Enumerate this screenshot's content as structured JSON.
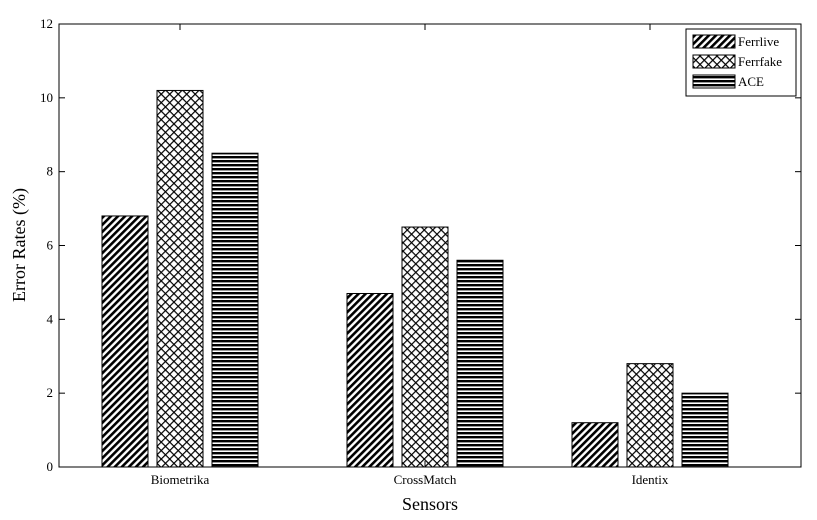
{
  "chart_data": {
    "type": "bar",
    "title": "",
    "xlabel": "Sensors",
    "ylabel": "Error Rates (%)",
    "categories": [
      "Biometrika",
      "CrossMatch",
      "Identix"
    ],
    "series": [
      {
        "name": "Ferrlive",
        "values": [
          6.8,
          4.7,
          1.2
        ],
        "pattern": "diagonal-hatch"
      },
      {
        "name": "Ferrfake",
        "values": [
          10.2,
          6.5,
          2.8
        ],
        "pattern": "crosshatch"
      },
      {
        "name": "ACE",
        "values": [
          8.5,
          5.6,
          2.0
        ],
        "pattern": "horizontal-stripes"
      }
    ],
    "ylim": [
      0,
      12
    ],
    "yticks": [
      "0",
      "2",
      "4",
      "6",
      "8",
      "10",
      "12"
    ],
    "legend_position": "top-right",
    "grid": false,
    "colors": {
      "ink": "#000000",
      "background": "#ffffff"
    }
  }
}
